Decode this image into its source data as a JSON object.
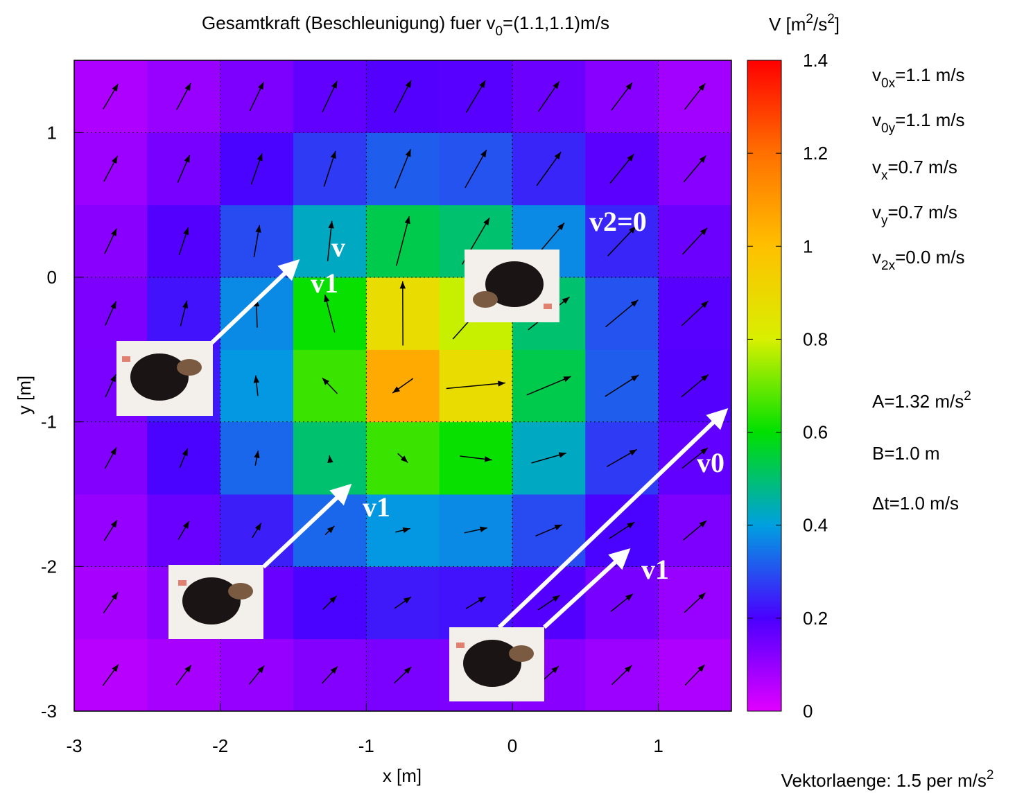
{
  "chart_data": {
    "type": "heatmap",
    "title": [
      {
        "text": "Gesamtkraft (Beschleunigung) fuer v"
      },
      {
        "text": "0",
        "script": "sub"
      },
      {
        "text": "=(1.1,1.1)m/s"
      }
    ],
    "xlabel": "x [m]",
    "ylabel": "y [m]",
    "xlim": [
      -3,
      1.5
    ],
    "ylim": [
      -3,
      1.5
    ],
    "xticks": [
      -3,
      -2,
      -1,
      0,
      1
    ],
    "yticks": [
      -3,
      -2,
      -1,
      0,
      1
    ],
    "grid": true,
    "x": [
      -2.75,
      -2.25,
      -1.75,
      -1.25,
      -0.75,
      -0.25,
      0.25,
      0.75,
      1.25
    ],
    "y": [
      -2.75,
      -2.25,
      -1.75,
      -1.25,
      -0.75,
      -0.25,
      0.25,
      0.75,
      1.25
    ],
    "z": [
      [
        0.054,
        0.076,
        0.101,
        0.124,
        0.137,
        0.133,
        0.116,
        0.091,
        0.067
      ],
      [
        0.076,
        0.113,
        0.159,
        0.204,
        0.231,
        0.223,
        0.187,
        0.14,
        0.097
      ],
      [
        0.101,
        0.159,
        0.238,
        0.329,
        0.389,
        0.373,
        0.293,
        0.204,
        0.133
      ],
      [
        0.124,
        0.204,
        0.329,
        0.502,
        0.654,
        0.607,
        0.428,
        0.273,
        0.168
      ],
      [
        0.137,
        0.231,
        0.389,
        0.654,
        1.056,
        0.884,
        0.532,
        0.316,
        0.187
      ],
      [
        0.133,
        0.223,
        0.373,
        0.607,
        0.884,
        0.784,
        0.502,
        0.304,
        0.182
      ],
      [
        0.116,
        0.187,
        0.293,
        0.428,
        0.532,
        0.502,
        0.373,
        0.246,
        0.155
      ],
      [
        0.091,
        0.14,
        0.204,
        0.273,
        0.316,
        0.304,
        0.246,
        0.177,
        0.118
      ],
      [
        0.067,
        0.097,
        0.133,
        0.168,
        0.187,
        0.182,
        0.155,
        0.118,
        0.084
      ]
    ],
    "u": [
      [
        0.107,
        0.104,
        0.103,
        0.107,
        0.117,
        0.127,
        0.135,
        0.137,
        0.135
      ],
      [
        0.099,
        0.092,
        0.088,
        0.094,
        0.113,
        0.136,
        0.15,
        0.151,
        0.145
      ],
      [
        0.089,
        0.074,
        0.061,
        0.063,
        0.102,
        0.158,
        0.181,
        0.174,
        0.16
      ],
      [
        0.079,
        0.054,
        0.02,
        -0.004,
        0.069,
        0.221,
        0.239,
        0.206,
        0.176
      ],
      [
        0.072,
        0.04,
        -0.015,
        -0.103,
        -0.141,
        0.404,
        0.303,
        0.23,
        0.185
      ],
      [
        0.074,
        0.044,
        -0.005,
        -0.067,
        -0.002,
        0.314,
        0.283,
        0.223,
        0.183
      ],
      [
        0.082,
        0.062,
        0.038,
        0.029,
        0.088,
        0.187,
        0.212,
        0.193,
        0.169
      ],
      [
        0.093,
        0.082,
        0.074,
        0.079,
        0.108,
        0.147,
        0.166,
        0.164,
        0.153
      ],
      [
        0.102,
        0.097,
        0.095,
        0.101,
        0.115,
        0.132,
        0.143,
        0.144,
        0.141
      ]
    ],
    "v": [
      [
        0.147,
        0.139,
        0.129,
        0.118,
        0.112,
        0.114,
        0.122,
        0.133,
        0.142
      ],
      [
        0.144,
        0.132,
        0.114,
        0.094,
        0.079,
        0.084,
        0.102,
        0.122,
        0.137
      ],
      [
        0.143,
        0.128,
        0.101,
        0.06,
        0.025,
        0.035,
        0.078,
        0.114,
        0.135
      ],
      [
        0.147,
        0.134,
        0.103,
        0.036,
        -0.063,
        -0.027,
        0.069,
        0.119,
        0.141
      ],
      [
        0.157,
        0.153,
        0.142,
        0.109,
        -0.101,
        0.038,
        0.128,
        0.148,
        0.155
      ],
      [
        0.167,
        0.176,
        0.198,
        0.261,
        0.444,
        0.354,
        0.227,
        0.187,
        0.172
      ],
      [
        0.175,
        0.19,
        0.221,
        0.279,
        0.343,
        0.323,
        0.252,
        0.206,
        0.183
      ],
      [
        0.177,
        0.191,
        0.214,
        0.246,
        0.27,
        0.263,
        0.233,
        0.204,
        0.184
      ],
      [
        0.175,
        0.185,
        0.2,
        0.216,
        0.225,
        0.223,
        0.209,
        0.193,
        0.181
      ]
    ],
    "arrow_color": "#000000",
    "colorbar": {
      "label": [
        {
          "text": "V [m"
        },
        {
          "text": "2",
          "script": "sup"
        },
        {
          "text": "/s"
        },
        {
          "text": "2",
          "script": "sup"
        },
        {
          "text": "]"
        }
      ],
      "lim": [
        0,
        1.4
      ],
      "ticks": [
        0,
        0.2,
        0.4,
        0.6,
        0.8,
        1,
        1.2,
        1.4
      ],
      "colors": [
        "#e100ff",
        "#4a00ff",
        "#00a0e0",
        "#00e000",
        "#d8f000",
        "#ffc000",
        "#ff7000",
        "#ff0000"
      ]
    },
    "annotations": [
      [
        {
          "text": "v"
        },
        {
          "text": "0x",
          "script": "sub"
        },
        {
          "text": "=1.1 m/s"
        }
      ],
      [
        {
          "text": "v"
        },
        {
          "text": "0y",
          "script": "sub"
        },
        {
          "text": "=1.1 m/s"
        }
      ],
      [
        {
          "text": "v"
        },
        {
          "text": "x",
          "script": "sub"
        },
        {
          "text": "=0.7 m/s"
        }
      ],
      [
        {
          "text": "v"
        },
        {
          "text": "y",
          "script": "sub"
        },
        {
          "text": "=0.7 m/s"
        }
      ],
      [
        {
          "text": "v"
        },
        {
          "text": "2x",
          "script": "sub"
        },
        {
          "text": "=0.0 m/s"
        }
      ],
      [
        {
          "text": "A=1.32 m/s"
        },
        {
          "text": "2",
          "script": "sup"
        }
      ],
      [
        {
          "text": "B=1.0 m"
        }
      ],
      [
        {
          "text": "Δt=1.0 m/s"
        }
      ]
    ],
    "footer": [
      {
        "text": "Vektorlaenge: 1.5 per m/s"
      },
      {
        "text": "2",
        "script": "sup"
      }
    ],
    "overlay_labels": [
      "v",
      "v1",
      "v2=0",
      "v1",
      "v0",
      "v1"
    ]
  }
}
